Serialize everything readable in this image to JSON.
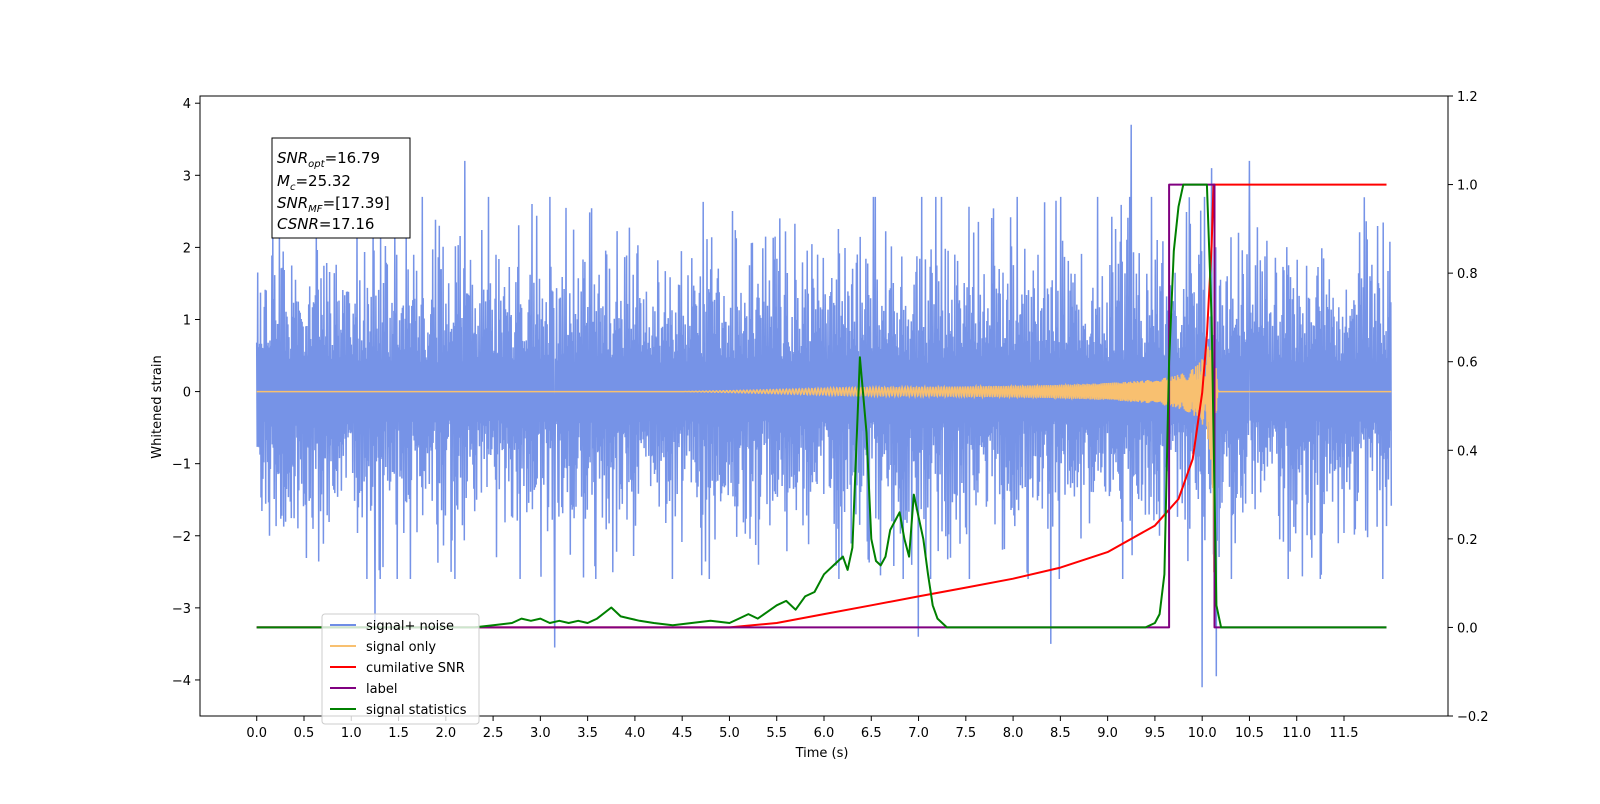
{
  "chart_data": {
    "type": "line",
    "xlabel": "Time (s)",
    "ylabel_left": "Whitened strain",
    "ylabel_right": "",
    "xlim": [
      -0.6,
      12.6
    ],
    "ylim_left": [
      -4.5,
      4.1
    ],
    "ylim_right": [
      -0.2,
      1.2
    ],
    "x_ticks": [
      "0.0",
      "0.5",
      "1.0",
      "1.5",
      "2.0",
      "2.5",
      "3.0",
      "3.5",
      "4.0",
      "4.5",
      "5.0",
      "5.5",
      "6.0",
      "6.5",
      "7.0",
      "7.5",
      "8.0",
      "8.5",
      "9.0",
      "9.5",
      "10.0",
      "10.5",
      "11.0",
      "11.5"
    ],
    "y_ticks_left": [
      "−4",
      "−3",
      "−2",
      "−1",
      "0",
      "1",
      "2",
      "3",
      "4"
    ],
    "y_ticks_right": [
      "−0.2",
      "0.0",
      "0.2",
      "0.4",
      "0.6",
      "0.8",
      "1.0",
      "1.2"
    ],
    "grid": false,
    "legend_position": "lower-left",
    "info_box": {
      "snr_opt": {
        "symbol": "SNR",
        "sub": "opt",
        "value": "=16.79"
      },
      "mc": {
        "symbol": "M",
        "sub": "c",
        "value": "=25.32"
      },
      "snr_mf": {
        "symbol": "SNR",
        "sub": "MF",
        "value": "=[17.39]"
      },
      "csnr": {
        "symbol": "CSNR",
        "sub": "",
        "value": "=17.16"
      }
    },
    "series": [
      {
        "name": "signal+ noise",
        "axis": "left",
        "color": "#6f8de6",
        "description_kind": "noise",
        "x_range": [
          0.0,
          12.0
        ],
        "noise_sigma": 1.0,
        "spikes": [
          [
            1.25,
            -3.2
          ],
          [
            3.15,
            -3.55
          ],
          [
            2.2,
            3.2
          ],
          [
            9.25,
            3.7
          ],
          [
            10.0,
            -4.1
          ],
          [
            10.1,
            3.1
          ],
          [
            10.15,
            -3.95
          ],
          [
            10.5,
            3.2
          ],
          [
            8.4,
            -3.5
          ],
          [
            7.0,
            -3.4
          ]
        ]
      },
      {
        "name": "signal only",
        "axis": "left",
        "color": "#f8c070",
        "description_kind": "chirp",
        "x_range": [
          0.0,
          12.0
        ],
        "merger_time": 10.12,
        "peak_amplitude": 3.3
      },
      {
        "name": "cumilative SNR",
        "axis": "right",
        "color": "#ff0000",
        "x": [
          0.0,
          5.0,
          5.5,
          6.0,
          6.5,
          7.0,
          7.5,
          8.0,
          8.5,
          9.0,
          9.5,
          9.75,
          9.9,
          10.0,
          10.05,
          10.1,
          10.12,
          11.95
        ],
        "y": [
          0.0,
          0.0,
          0.01,
          0.03,
          0.05,
          0.07,
          0.09,
          0.11,
          0.135,
          0.17,
          0.23,
          0.29,
          0.38,
          0.53,
          0.66,
          0.86,
          1.0,
          1.0
        ]
      },
      {
        "name": "label",
        "axis": "right",
        "color": "#800080",
        "x": [
          0.0,
          9.65,
          9.65,
          10.13,
          10.13,
          11.95
        ],
        "y": [
          0.0,
          0.0,
          1.0,
          1.0,
          0.0,
          0.0
        ]
      },
      {
        "name": "signal statistics",
        "axis": "right",
        "color": "#008000",
        "x": [
          0.0,
          2.0,
          2.3,
          2.5,
          2.7,
          2.8,
          2.9,
          3.0,
          3.1,
          3.2,
          3.3,
          3.4,
          3.5,
          3.6,
          3.75,
          3.85,
          3.95,
          4.05,
          4.2,
          4.4,
          4.6,
          4.8,
          5.0,
          5.1,
          5.2,
          5.3,
          5.4,
          5.5,
          5.6,
          5.7,
          5.8,
          5.9,
          6.0,
          6.1,
          6.2,
          6.25,
          6.3,
          6.38,
          6.45,
          6.5,
          6.55,
          6.6,
          6.65,
          6.7,
          6.8,
          6.85,
          6.9,
          6.95,
          7.0,
          7.05,
          7.1,
          7.15,
          7.2,
          7.3,
          8.0,
          9.0,
          9.4,
          9.5,
          9.55,
          9.6,
          9.65,
          9.7,
          9.75,
          9.8,
          9.85,
          9.9,
          10.0,
          10.05,
          10.1,
          10.15,
          10.2,
          11.95
        ],
        "y": [
          0.0,
          0.0,
          0.0,
          0.005,
          0.01,
          0.02,
          0.015,
          0.02,
          0.01,
          0.015,
          0.01,
          0.015,
          0.01,
          0.02,
          0.045,
          0.025,
          0.02,
          0.015,
          0.01,
          0.005,
          0.01,
          0.015,
          0.01,
          0.02,
          0.03,
          0.02,
          0.035,
          0.05,
          0.06,
          0.04,
          0.07,
          0.08,
          0.12,
          0.14,
          0.16,
          0.13,
          0.18,
          0.61,
          0.44,
          0.2,
          0.15,
          0.14,
          0.16,
          0.22,
          0.26,
          0.2,
          0.16,
          0.3,
          0.25,
          0.2,
          0.12,
          0.05,
          0.02,
          0.0,
          0.0,
          0.0,
          0.0,
          0.01,
          0.03,
          0.12,
          0.6,
          0.85,
          0.95,
          1.0,
          1.0,
          1.0,
          1.0,
          1.0,
          0.7,
          0.05,
          0.0,
          0.0
        ]
      }
    ]
  }
}
